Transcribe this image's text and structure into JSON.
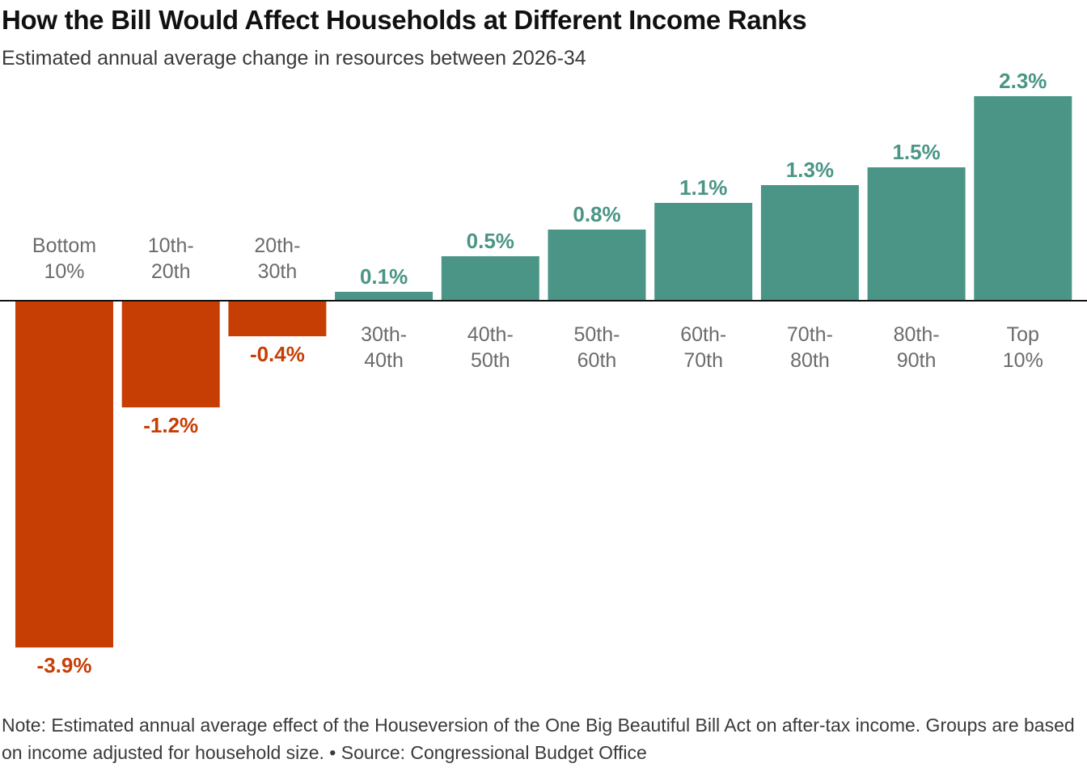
{
  "header": {
    "title": "How the Bill Would Affect Households at Different Income Ranks",
    "subtitle": "Estimated annual average change in resources between 2026-34"
  },
  "colors": {
    "positive": "#4a9585",
    "negative": "#c73e05",
    "category_label": "#6b6b6b",
    "baseline": "#111111"
  },
  "chart_data": {
    "type": "bar",
    "categories": [
      "Bottom 10%",
      "10th-20th",
      "20th-30th",
      "30th-40th",
      "40th-50th",
      "50th-60th",
      "60th-70th",
      "70th-80th",
      "80th-90th",
      "Top 10%"
    ],
    "category_label_lines": [
      [
        "Bottom",
        "10%"
      ],
      [
        "10th-",
        "20th"
      ],
      [
        "20th-",
        "30th"
      ],
      [
        "30th-",
        "40th"
      ],
      [
        "40th-",
        "50th"
      ],
      [
        "50th-",
        "60th"
      ],
      [
        "60th-",
        "70th"
      ],
      [
        "70th-",
        "80th"
      ],
      [
        "80th-",
        "90th"
      ],
      [
        "Top",
        "10%"
      ]
    ],
    "values": [
      -3.9,
      -1.2,
      -0.4,
      0.1,
      0.5,
      0.8,
      1.1,
      1.3,
      1.5,
      2.3
    ],
    "data_labels": [
      "-3.9%",
      "-1.2%",
      "-0.4%",
      "0.1%",
      "0.5%",
      "0.8%",
      "1.1%",
      "1.3%",
      "1.5%",
      "2.3%"
    ],
    "unit": "%",
    "ylim": [
      -3.9,
      2.3
    ],
    "grid": false,
    "legend": "none"
  },
  "footer": {
    "note": "Note: Estimated annual average effect of the Houseversion of the One Big Beautiful Bill Act on after-tax income. Groups are based on income adjusted for household size. • Source: Congressional Budget Office"
  }
}
